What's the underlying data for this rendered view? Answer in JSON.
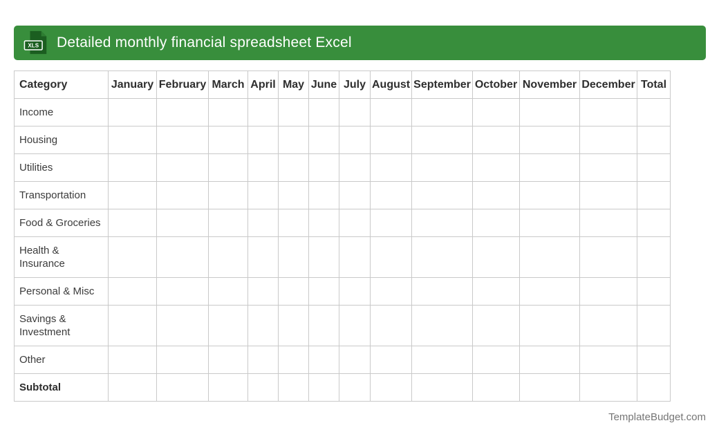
{
  "header": {
    "title": "Detailed monthly financial spreadsheet Excel",
    "icon": {
      "name": "xls-file-icon",
      "badge_label": "XLS"
    }
  },
  "table": {
    "columns": [
      "Category",
      "January",
      "February",
      "March",
      "April",
      "May",
      "June",
      "July",
      "August",
      "September",
      "October",
      "November",
      "December",
      "Total"
    ],
    "rows": [
      {
        "label": "Income",
        "bold": false,
        "values": [
          "",
          "",
          "",
          "",
          "",
          "",
          "",
          "",
          "",
          "",
          "",
          "",
          ""
        ]
      },
      {
        "label": "Housing",
        "bold": false,
        "values": [
          "",
          "",
          "",
          "",
          "",
          "",
          "",
          "",
          "",
          "",
          "",
          "",
          ""
        ]
      },
      {
        "label": "Utilities",
        "bold": false,
        "values": [
          "",
          "",
          "",
          "",
          "",
          "",
          "",
          "",
          "",
          "",
          "",
          "",
          ""
        ]
      },
      {
        "label": "Transportation",
        "bold": false,
        "values": [
          "",
          "",
          "",
          "",
          "",
          "",
          "",
          "",
          "",
          "",
          "",
          "",
          ""
        ]
      },
      {
        "label": "Food & Groceries",
        "bold": false,
        "values": [
          "",
          "",
          "",
          "",
          "",
          "",
          "",
          "",
          "",
          "",
          "",
          "",
          ""
        ]
      },
      {
        "label": "Health & Insurance",
        "bold": false,
        "values": [
          "",
          "",
          "",
          "",
          "",
          "",
          "",
          "",
          "",
          "",
          "",
          "",
          ""
        ]
      },
      {
        "label": "Personal & Misc",
        "bold": false,
        "values": [
          "",
          "",
          "",
          "",
          "",
          "",
          "",
          "",
          "",
          "",
          "",
          "",
          ""
        ]
      },
      {
        "label": "Savings & Investment",
        "bold": false,
        "values": [
          "",
          "",
          "",
          "",
          "",
          "",
          "",
          "",
          "",
          "",
          "",
          "",
          ""
        ]
      },
      {
        "label": "Other",
        "bold": false,
        "values": [
          "",
          "",
          "",
          "",
          "",
          "",
          "",
          "",
          "",
          "",
          "",
          "",
          ""
        ]
      },
      {
        "label": "Subtotal",
        "bold": true,
        "values": [
          "",
          "",
          "",
          "",
          "",
          "",
          "",
          "",
          "",
          "",
          "",
          "",
          ""
        ]
      }
    ]
  },
  "footer": {
    "credit": "TemplateBudget.com"
  },
  "colors": {
    "accent_green": "#388e3c",
    "icon_dark_green": "#1b5e20",
    "border_gray": "#c9c9c9",
    "text_dark": "#2e2e2e",
    "text_body": "#3b3b3b",
    "footer_gray": "#757575"
  }
}
